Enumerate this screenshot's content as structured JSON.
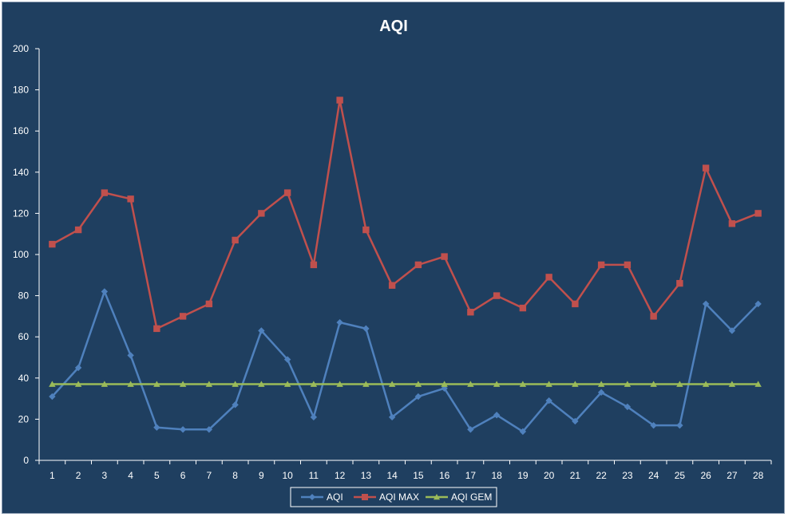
{
  "chart_data": {
    "type": "line",
    "title": "AQI",
    "xlabel": "",
    "ylabel": "",
    "ylim": [
      0,
      200
    ],
    "yticks": [
      0,
      20,
      40,
      60,
      80,
      100,
      120,
      140,
      160,
      180,
      200
    ],
    "grid": false,
    "legend_position": "bottom",
    "categories": [
      "1",
      "2",
      "3",
      "4",
      "5",
      "6",
      "7",
      "8",
      "9",
      "10",
      "11",
      "12",
      "13",
      "14",
      "15",
      "16",
      "17",
      "18",
      "19",
      "20",
      "21",
      "22",
      "23",
      "24",
      "25",
      "26",
      "27",
      "28"
    ],
    "series": [
      {
        "name": "AQI",
        "color": "#4f81bd",
        "marker": "diamond",
        "values": [
          31,
          45,
          82,
          51,
          16,
          15,
          15,
          27,
          63,
          49,
          21,
          67,
          64,
          21,
          31,
          35,
          15,
          22,
          14,
          29,
          19,
          33,
          26,
          17,
          17,
          76,
          63,
          76
        ]
      },
      {
        "name": "AQI MAX",
        "color": "#c0504d",
        "marker": "square",
        "values": [
          105,
          112,
          130,
          127,
          64,
          70,
          76,
          107,
          120,
          130,
          95,
          175,
          112,
          85,
          95,
          99,
          72,
          80,
          74,
          89,
          76,
          95,
          95,
          70,
          86,
          142,
          115,
          120
        ]
      },
      {
        "name": "AQI GEM",
        "color": "#9bbb59",
        "marker": "triangle",
        "values": [
          37,
          37,
          37,
          37,
          37,
          37,
          37,
          37,
          37,
          37,
          37,
          37,
          37,
          37,
          37,
          37,
          37,
          37,
          37,
          37,
          37,
          37,
          37,
          37,
          37,
          37,
          37,
          37
        ]
      }
    ]
  }
}
